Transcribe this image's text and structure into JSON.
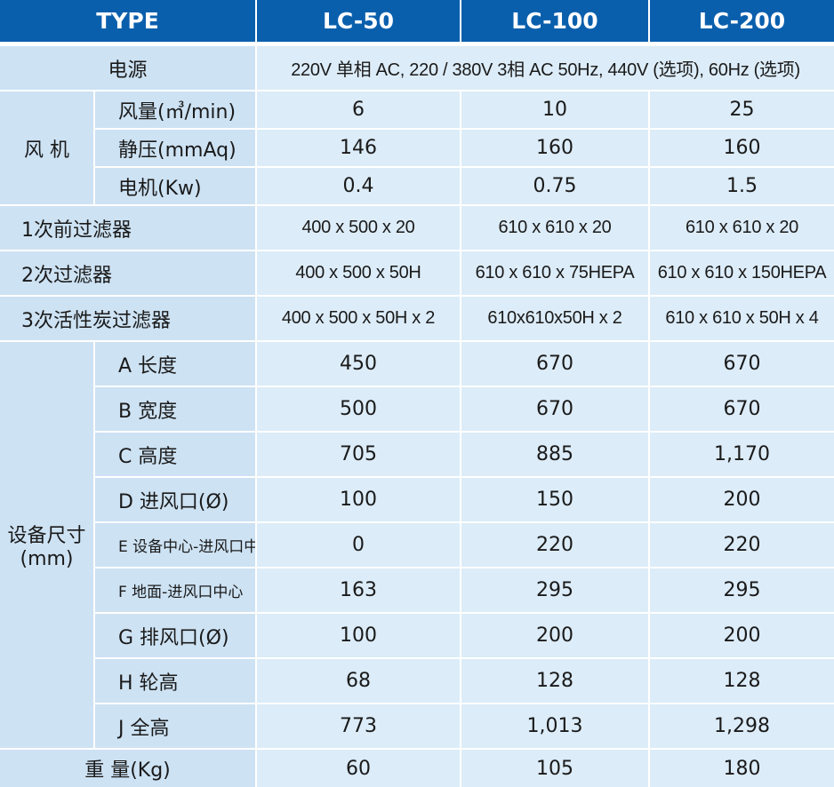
{
  "header": {
    "type": "TYPE",
    "models": [
      "LC-50",
      "LC-100",
      "LC-200"
    ]
  },
  "power": {
    "label": "电源",
    "value": "220V 单相 AC, 220 / 380V 3相 AC 50Hz, 440V (选项), 60Hz (选项)"
  },
  "fan": {
    "label": "风 机",
    "rows": [
      {
        "label": "风量(㎥/min)",
        "values": [
          "6",
          "10",
          "25"
        ]
      },
      {
        "label": "静压(mmAq)",
        "values": [
          "146",
          "160",
          "160"
        ]
      },
      {
        "label": "电机(Kw)",
        "values": [
          "0.4",
          "0.75",
          "1.5"
        ]
      }
    ]
  },
  "filters": [
    {
      "label": "1次前过滤器",
      "values": [
        "400 x 500 x 20",
        "610 x 610 x 20",
        "610 x 610 x 20"
      ]
    },
    {
      "label": "2次过滤器",
      "values": [
        "400 x 500 x 50H",
        "610 x 610 x 75HEPA",
        "610 x 610 x 150HEPA"
      ]
    },
    {
      "label": "3次活性炭过滤器",
      "values": [
        "400 x 500 x 50H x 2",
        "610x610x50H x 2",
        "610 x 610 x 50H x 4"
      ]
    }
  ],
  "dimensions": {
    "label_line1": "设备尺寸",
    "label_line2": "(mm)",
    "rows": [
      {
        "label": "A 长度",
        "values": [
          "450",
          "670",
          "670"
        ]
      },
      {
        "label": "B 宽度",
        "values": [
          "500",
          "670",
          "670"
        ]
      },
      {
        "label": "C 高度",
        "values": [
          "705",
          "885",
          "1,170"
        ]
      },
      {
        "label": "D 进风口(Ø)",
        "values": [
          "100",
          "150",
          "200"
        ]
      },
      {
        "label": "E 设备中心-进风口中心",
        "values": [
          "0",
          "220",
          "220"
        ]
      },
      {
        "label": "F 地面-进风口中心",
        "values": [
          "163",
          "295",
          "295"
        ]
      },
      {
        "label": "G 排风口(Ø)",
        "values": [
          "100",
          "200",
          "200"
        ]
      },
      {
        "label": "H 轮高",
        "values": [
          "68",
          "128",
          "128"
        ]
      },
      {
        "label": "J 全高",
        "values": [
          "773",
          "1,013",
          "1,298"
        ]
      }
    ]
  },
  "weight": {
    "label": "重 量(Kg)",
    "values": [
      "60",
      "105",
      "180"
    ]
  }
}
